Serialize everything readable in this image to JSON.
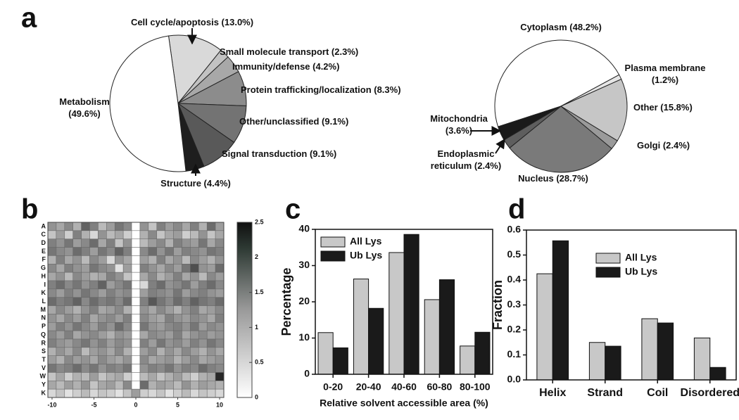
{
  "chart_data": [
    {
      "type": "pie",
      "panel_label": "a",
      "labels": [
        "Cell cycle/apoptosis (13.0%)",
        "Small molecule transport (2.3%)",
        "Immunity/defense (4.2%)",
        "Protein trafficking/localization (8.3%)",
        "Other/unclassified (9.1%)",
        "Signal transduction (9.1%)",
        "Structure (4.4%)",
        "Metabolism (49.6%)"
      ],
      "values": [
        13.0,
        2.3,
        4.2,
        8.3,
        9.1,
        9.1,
        4.4,
        49.6
      ],
      "colors": [
        "#d9d9d9",
        "#c2c2c2",
        "#a8a8a8",
        "#8c8c8c",
        "#737373",
        "#595959",
        "#1e1e1e",
        "#ffffff"
      ]
    },
    {
      "type": "pie",
      "labels": [
        "Cytoplasm (48.2%)",
        "Plasma membrane (1.2%)",
        "Other (15.8%)",
        "Golgi (2.4%)",
        "Nucleus (28.7%)",
        "Endoplasmic reticulum (2.4%)",
        "Mitochondria (3.6%)"
      ],
      "values": [
        48.2,
        1.2,
        15.8,
        2.4,
        28.7,
        2.4,
        3.6
      ],
      "colors": [
        "#ffffff",
        "#e6e6e6",
        "#c6c6c6",
        "#9a9a9a",
        "#7a7a7a",
        "#5e5e5e",
        "#1a1a1a"
      ]
    },
    {
      "type": "heatmap",
      "panel_label": "b",
      "x": [
        -10,
        -9,
        -8,
        -7,
        -6,
        -5,
        -4,
        -3,
        -2,
        -1,
        0,
        1,
        2,
        3,
        4,
        5,
        6,
        7,
        8,
        9,
        10
      ],
      "categories": [
        "A",
        "C",
        "D",
        "E",
        "F",
        "G",
        "H",
        "I",
        "K",
        "L",
        "M",
        "N",
        "P",
        "Q",
        "R",
        "S",
        "T",
        "V",
        "W",
        "Y",
        "K"
      ],
      "xlim": [
        -10.5,
        10.5
      ],
      "xticks": [
        -10,
        -5,
        0,
        5,
        10
      ],
      "clim": [
        0,
        2.5
      ],
      "cticks": [
        0,
        0.5,
        1,
        1.5,
        2,
        2.5
      ],
      "values": [
        [
          1.1,
          0.9,
          1.2,
          0.8,
          1.6,
          1.3,
          0.7,
          1.0,
          1.4,
          1.2,
          0,
          1.1,
          0.6,
          1.3,
          1.0,
          1.2,
          0.9,
          1.3,
          0.8,
          1.5,
          1.0
        ],
        [
          0.6,
          1.0,
          0.5,
          1.3,
          0.8,
          0.4,
          1.1,
          0.7,
          0.9,
          0.5,
          0,
          0.8,
          1.2,
          0.6,
          0.9,
          1.0,
          0.5,
          0.7,
          1.1,
          0.6,
          0.9
        ],
        [
          1.3,
          1.1,
          1.4,
          1.0,
          1.2,
          1.5,
          0.9,
          1.3,
          0.6,
          1.1,
          0,
          0.7,
          1.0,
          1.2,
          0.8,
          1.3,
          1.1,
          1.0,
          1.4,
          0.9,
          1.2
        ],
        [
          1.4,
          1.2,
          1.1,
          1.5,
          1.3,
          1.0,
          1.4,
          1.2,
          1.6,
          1.3,
          0,
          1.2,
          1.5,
          1.1,
          1.4,
          1.0,
          1.3,
          1.2,
          1.1,
          1.4,
          1.3
        ],
        [
          0.8,
          1.3,
          0.9,
          1.1,
          0.7,
          1.2,
          1.0,
          0.4,
          1.1,
          0.9,
          0,
          1.0,
          0.8,
          1.3,
          0.9,
          1.1,
          0.7,
          1.2,
          1.0,
          0.8,
          1.1
        ],
        [
          1.2,
          0.9,
          1.3,
          1.1,
          1.0,
          1.4,
          1.2,
          1.1,
          0.3,
          1.0,
          0,
          1.3,
          1.1,
          0.9,
          1.2,
          1.0,
          1.4,
          1.8,
          1.1,
          1.0,
          1.5
        ],
        [
          0.9,
          1.1,
          0.7,
          1.2,
          1.0,
          0.8,
          0.9,
          1.3,
          1.1,
          0.6,
          0,
          0.9,
          1.2,
          0.8,
          1.0,
          1.3,
          0.9,
          1.1,
          0.7,
          1.2,
          1.0
        ],
        [
          1.3,
          1.5,
          1.2,
          1.4,
          1.1,
          1.3,
          1.6,
          1.0,
          1.2,
          1.4,
          0,
          0.4,
          1.3,
          1.5,
          1.1,
          1.2,
          1.4,
          1.0,
          1.3,
          1.5,
          1.2
        ],
        [
          1.2,
          1.0,
          1.3,
          1.1,
          1.4,
          1.2,
          1.0,
          1.3,
          1.1,
          1.2,
          0,
          1.0,
          1.3,
          1.2,
          1.1,
          1.4,
          1.0,
          1.2,
          1.3,
          1.1,
          1.0
        ],
        [
          1.5,
          1.3,
          1.4,
          1.6,
          1.2,
          1.5,
          1.3,
          1.4,
          1.2,
          1.5,
          0,
          1.3,
          1.7,
          1.4,
          1.2,
          1.5,
          1.3,
          1.6,
          1.4,
          1.3,
          1.5
        ],
        [
          0.9,
          1.2,
          1.0,
          0.8,
          1.1,
          1.3,
          0.9,
          1.0,
          1.2,
          0.8,
          0,
          1.1,
          0.9,
          1.2,
          1.0,
          0.8,
          1.1,
          1.3,
          0.9,
          1.0,
          1.2
        ],
        [
          1.1,
          0.9,
          1.2,
          1.0,
          1.3,
          0.9,
          1.1,
          1.2,
          1.0,
          1.3,
          0,
          1.2,
          1.0,
          0.9,
          1.3,
          1.1,
          1.0,
          1.2,
          1.1,
          0.9,
          1.3
        ],
        [
          1.0,
          1.3,
          1.1,
          1.4,
          1.2,
          1.0,
          1.3,
          1.1,
          1.5,
          1.2,
          0,
          1.4,
          1.1,
          1.0,
          1.2,
          1.3,
          1.1,
          1.4,
          1.0,
          1.2,
          1.1
        ],
        [
          1.2,
          1.0,
          1.3,
          0.9,
          1.1,
          1.2,
          1.0,
          0.8,
          1.1,
          1.0,
          0,
          0.9,
          1.2,
          1.1,
          1.0,
          1.3,
          0.9,
          1.1,
          1.2,
          1.0,
          1.1
        ],
        [
          1.3,
          1.1,
          1.0,
          1.2,
          1.4,
          1.1,
          1.3,
          1.0,
          1.2,
          1.1,
          0,
          1.3,
          1.0,
          1.4,
          1.1,
          1.2,
          1.0,
          1.3,
          1.1,
          1.4,
          1.2
        ],
        [
          0.8,
          1.1,
          0.9,
          1.2,
          0.7,
          1.0,
          1.1,
          0.9,
          1.2,
          0.8,
          0,
          1.0,
          1.2,
          0.8,
          1.1,
          0.9,
          1.2,
          1.0,
          0.8,
          1.1,
          0.9
        ],
        [
          1.0,
          0.8,
          1.2,
          1.0,
          1.1,
          0.9,
          1.2,
          1.0,
          0.9,
          1.1,
          0,
          1.2,
          0.9,
          1.0,
          1.1,
          0.8,
          1.0,
          1.2,
          0.9,
          1.0,
          1.1
        ],
        [
          1.4,
          1.2,
          1.3,
          1.5,
          1.2,
          1.4,
          1.1,
          1.3,
          1.2,
          1.4,
          0,
          1.1,
          1.3,
          1.2,
          1.4,
          1.1,
          1.3,
          1.2,
          1.5,
          1.3,
          1.2
        ],
        [
          0.6,
          0.9,
          0.5,
          0.8,
          0.7,
          1.0,
          0.6,
          0.8,
          0.9,
          0.5,
          0,
          0.7,
          0.9,
          0.6,
          0.8,
          1.0,
          0.7,
          0.5,
          0.8,
          0.9,
          2.2
        ],
        [
          0.9,
          0.7,
          1.0,
          0.8,
          1.1,
          0.6,
          0.9,
          1.0,
          0.7,
          1.2,
          0,
          1.5,
          0.8,
          1.0,
          0.9,
          0.7,
          1.1,
          0.8,
          1.0,
          0.9,
          0.8
        ],
        [
          0.4,
          0.6,
          0.3,
          0.5,
          0.7,
          0.4,
          0.6,
          0.5,
          0.3,
          0.6,
          1.0,
          0.5,
          0.4,
          0.6,
          0.3,
          0.5,
          0.7,
          0.4,
          0.6,
          0.5,
          0.4
        ]
      ]
    },
    {
      "type": "bar",
      "panel_label": "c",
      "categories": [
        "0-20",
        "20-40",
        "40-60",
        "60-80",
        "80-100"
      ],
      "series": [
        {
          "name": "All Lys",
          "color": "#c8c8c8",
          "values": [
            11.5,
            26.3,
            33.6,
            20.6,
            7.8
          ]
        },
        {
          "name": "Ub Lys",
          "color": "#1a1a1a",
          "values": [
            7.3,
            18.2,
            38.6,
            26.1,
            11.6
          ]
        }
      ],
      "xlabel": "Relative solvent accessible area (%)",
      "ylabel": "Percentage",
      "ylim": [
        0,
        40
      ],
      "yticks": [
        0,
        10,
        20,
        30,
        40
      ],
      "legend": "upper left"
    },
    {
      "type": "bar",
      "panel_label": "d",
      "categories": [
        "Helix",
        "Strand",
        "Coil",
        "Disordered"
      ],
      "series": [
        {
          "name": "All Lys",
          "color": "#c8c8c8",
          "values": [
            0.425,
            0.15,
            0.245,
            0.168
          ]
        },
        {
          "name": "Ub Lys",
          "color": "#1a1a1a",
          "values": [
            0.557,
            0.135,
            0.228,
            0.05
          ]
        }
      ],
      "ylabel": "Fraction",
      "ylim": [
        0,
        0.6
      ],
      "yticks": [
        {
          "value": 0,
          "label": "0.0"
        },
        0.1,
        0.2,
        0.3,
        0.4,
        0.5,
        0.6
      ],
      "legend": "upper center"
    }
  ]
}
